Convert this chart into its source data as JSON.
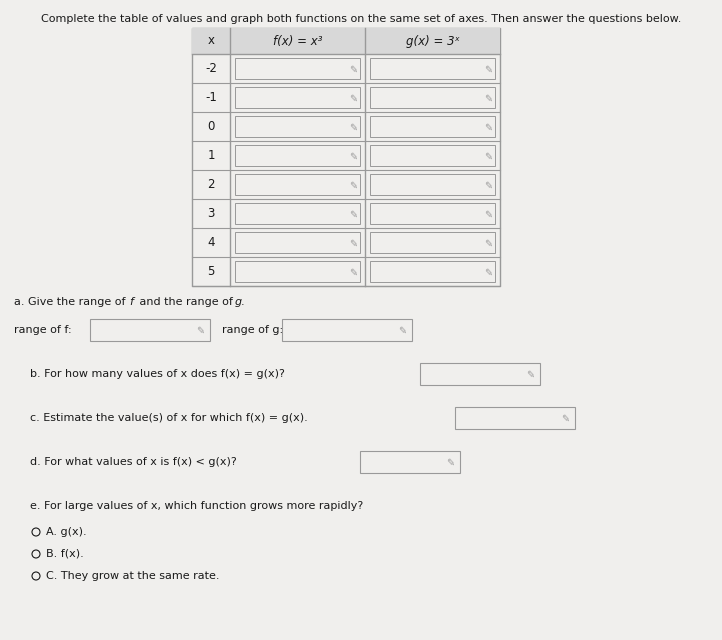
{
  "title": "Complete the table of values and graph both functions on the same set of axes. Then answer the questions below.",
  "col_header_x": "x",
  "col_header_f": "f(x) = x³",
  "col_header_g": "g(x) = 3ˣ",
  "x_values": [
    "-2",
    "-1",
    "0",
    "1",
    "2",
    "3",
    "4",
    "5"
  ],
  "section_a_label": "a. Give the range of ",
  "section_a_f": "f",
  "section_a_mid": " and the range of ",
  "section_a_g": "g",
  "section_a_end": ".",
  "range_f_label": "range of f:",
  "range_g_label": "range of g:",
  "section_b": "b. For how many values of x does f(x) = g(x)?",
  "section_c": "c. Estimate the value(s) of x for which f(x) = g(x).",
  "section_d": "d. For what values of x is f(x) < g(x)?",
  "section_e": "e. For large values of x, which function grows more rapidly?",
  "choices": [
    "A. g(x).",
    "B. f(x).",
    "C. They grow at the same rate."
  ],
  "bg_color": "#d8d8d8",
  "white_bg": "#f0efed",
  "table_bg": "#f0efed",
  "header_bg": "#d8d8d8",
  "cell_input_bg": "#f0efed",
  "border_color": "#999999",
  "text_color": "#1a1a1a",
  "pencil_color": "#999999",
  "title_fontsize": 8.0,
  "body_fontsize": 8.0,
  "table_fontsize": 8.5
}
